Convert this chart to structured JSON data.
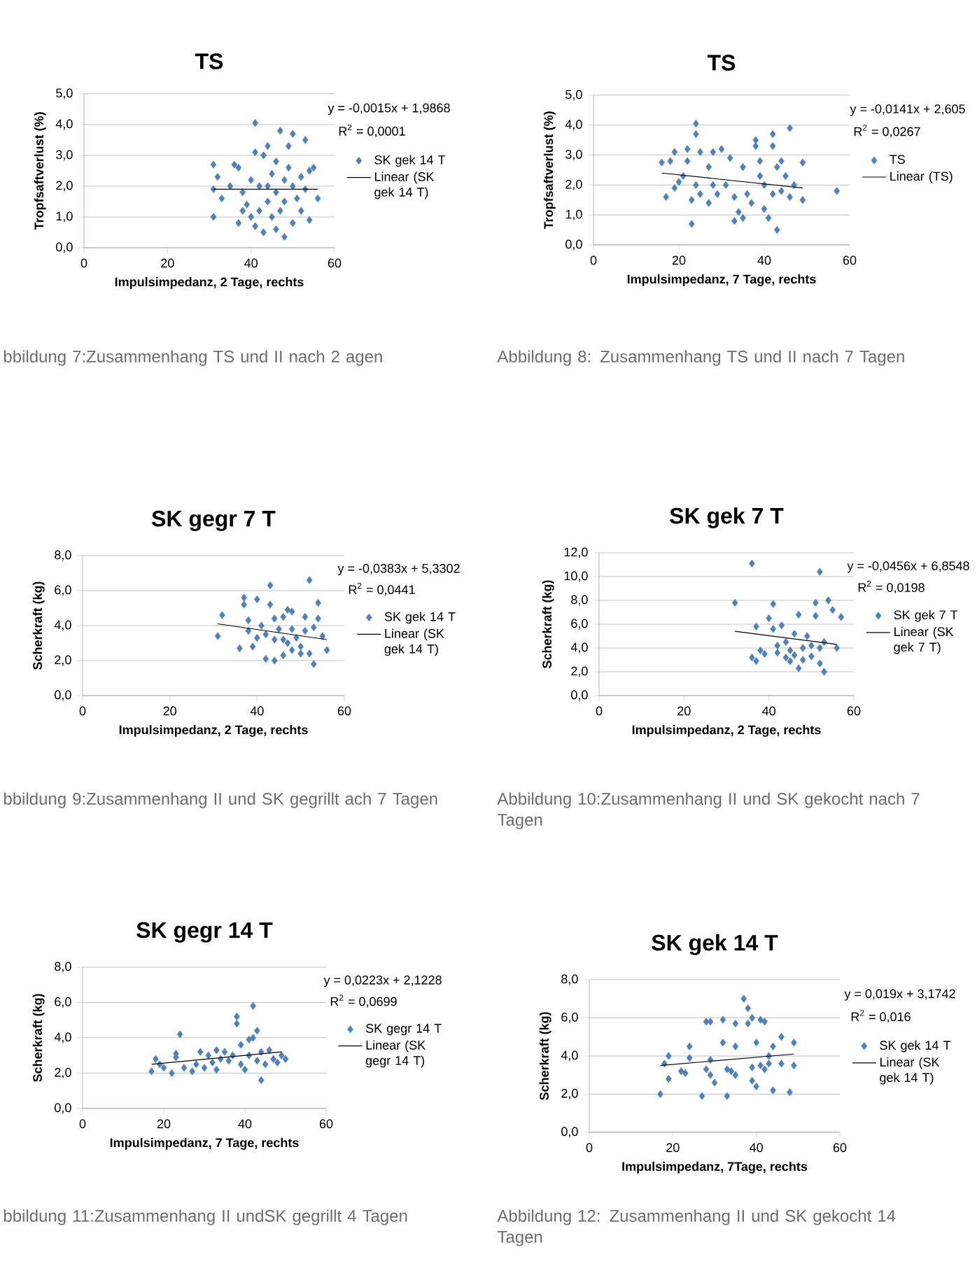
{
  "chart_data": [
    {
      "type": "scatter",
      "title": "TS",
      "xlabel": "Impulsimpedanz, 2 Tage, rechts",
      "ylabel": "Tropfsaftverlust (%)",
      "xlim": [
        0,
        60
      ],
      "xticks": [
        0,
        20,
        40,
        60
      ],
      "ylim": [
        0,
        5
      ],
      "yticks": [
        {
          "value": 0,
          "label": "0,0"
        },
        {
          "value": 1,
          "label": "1,0"
        },
        {
          "value": 2,
          "label": "2,0"
        },
        {
          "value": 3,
          "label": "3,0"
        },
        {
          "value": 4,
          "label": "4,0"
        },
        {
          "value": 5,
          "label": "5,0"
        }
      ],
      "grid": "y",
      "legend": "right",
      "marker": "diamond",
      "series": [
        {
          "name": "SK gek 14 T",
          "color": "#4f81bd",
          "x": [
            31,
            31,
            31,
            32,
            33,
            36,
            37,
            37,
            38,
            39,
            41,
            41,
            41,
            42,
            43,
            43,
            44,
            44,
            45,
            45,
            46,
            46,
            47,
            47,
            48,
            48,
            49,
            49,
            50,
            50,
            51,
            52,
            53,
            53,
            54,
            54,
            55,
            56,
            40,
            42,
            44,
            46,
            48,
            50,
            52,
            35,
            38,
            40
          ],
          "values": [
            2.7,
            1.0,
            1.9,
            2.3,
            1.6,
            2.7,
            2.6,
            0.8,
            1.8,
            1.4,
            4.05,
            3.1,
            0.7,
            2.0,
            0.5,
            3.0,
            3.3,
            1.5,
            2.4,
            1.0,
            2.8,
            1.8,
            3.8,
            1.2,
            0.35,
            2.2,
            3.3,
            2.6,
            3.7,
            0.8,
            1.6,
            2.3,
            3.5,
            1.9,
            0.9,
            2.5,
            2.6,
            1.6,
            2.2,
            1.2,
            2.0,
            0.6,
            1.5,
            2.0,
            1.2,
            2.0,
            1.2,
            1.0
          ]
        },
        {
          "name": "Linear (SK gek 14 T)",
          "type": "line",
          "color": "#000000",
          "x": [
            31,
            56
          ],
          "values": [
            1.9,
            1.9
          ],
          "marker": "none"
        }
      ],
      "annotations": [
        "y = -0,0015x + 1,9868",
        "R$^{2}$ = 0,0001",
        "bbildung 7:Zusammenhang TS und II nach 2 agen"
      ]
    },
    {
      "type": "scatter",
      "title": "TS",
      "xlabel": "Impulsimpedanz, 7 Tage, rechts",
      "ylabel": "Tropfsaftverlust (%)",
      "xlim": [
        0,
        60
      ],
      "xticks": [
        0,
        20,
        40,
        60
      ],
      "ylim": [
        0,
        5
      ],
      "yticks": [
        {
          "value": 0,
          "label": "0,0"
        },
        {
          "value": 1,
          "label": "1,0"
        },
        {
          "value": 2,
          "label": "2,0"
        },
        {
          "value": 3,
          "label": "3,0"
        },
        {
          "value": 4,
          "label": "4,0"
        },
        {
          "value": 5,
          "label": "5,0"
        }
      ],
      "grid": "y",
      "legend": "right",
      "marker": "diamond",
      "series": [
        {
          "name": "TS",
          "color": "#4f81bd",
          "x": [
            16,
            17,
            18,
            19,
            19,
            20,
            21,
            22,
            22,
            23,
            23,
            24,
            24,
            24,
            25,
            25,
            27,
            27,
            28,
            28,
            29,
            30,
            31,
            32,
            33,
            33,
            34,
            35,
            35,
            36,
            37,
            38,
            38,
            39,
            39,
            40,
            40,
            41,
            42,
            42,
            42,
            43,
            43,
            44,
            44,
            45,
            46,
            46,
            47,
            49,
            49,
            57
          ],
          "values": [
            2.75,
            1.6,
            2.8,
            3.1,
            1.9,
            2.1,
            2.3,
            3.2,
            2.8,
            1.5,
            0.7,
            4.05,
            3.7,
            2.0,
            1.7,
            3.1,
            2.6,
            1.4,
            3.1,
            2.0,
            1.7,
            3.2,
            2.0,
            2.9,
            0.8,
            1.6,
            1.1,
            2.6,
            0.9,
            1.7,
            1.4,
            3.5,
            3.3,
            2.3,
            2.8,
            1.2,
            2.0,
            0.9,
            3.7,
            3.3,
            1.7,
            0.5,
            2.6,
            2.8,
            1.8,
            2.3,
            3.9,
            1.6,
            2.0,
            2.75,
            1.5,
            1.8
          ]
        },
        {
          "name": "Linear (TS)",
          "type": "line",
          "color": "#000000",
          "x": [
            16,
            49
          ],
          "values": [
            2.4,
            1.9
          ],
          "marker": "none"
        }
      ],
      "annotations": [
        "y = -0,0141x + 2,605",
        "R$^{2}$ = 0,0267",
        "Abbildung 8: Zusammenhang TS und II nach 7 Tagen"
      ]
    },
    {
      "type": "scatter",
      "title": "SK gegr 7 T",
      "xlabel": "Impulsimpedanz, 2 Tage, rechts",
      "ylabel": "Scherkraft (kg)",
      "xlim": [
        0,
        60
      ],
      "xticks": [
        0,
        20,
        40,
        60
      ],
      "ylim": [
        0,
        8
      ],
      "yticks": [
        {
          "value": 0,
          "label": "0,0"
        },
        {
          "value": 2,
          "label": "2,0"
        },
        {
          "value": 4,
          "label": "4,0"
        },
        {
          "value": 6,
          "label": "6,0"
        },
        {
          "value": 8,
          "label": "8,0"
        }
      ],
      "grid": "y",
      "legend": "right",
      "marker": "diamond",
      "series": [
        {
          "name": "SK gek 14 T",
          "color": "#4f81bd",
          "x": [
            31,
            32,
            36,
            37,
            37,
            38,
            38,
            39,
            40,
            41,
            42,
            43,
            43,
            44,
            44,
            45,
            46,
            46,
            47,
            47,
            48,
            48,
            49,
            50,
            51,
            51,
            52,
            52,
            53,
            53,
            54,
            54,
            55,
            56,
            42,
            44,
            46,
            50,
            48,
            40
          ],
          "values": [
            3.4,
            4.6,
            2.7,
            5.6,
            5.2,
            4.3,
            3.7,
            2.8,
            5.5,
            4.0,
            2.1,
            6.3,
            5.2,
            3.2,
            2.0,
            3.8,
            2.3,
            4.5,
            4.9,
            3.0,
            4.8,
            2.6,
            3.3,
            2.8,
            4.5,
            3.7,
            6.6,
            2.4,
            1.8,
            3.9,
            5.3,
            4.4,
            3.4,
            2.6,
            3.5,
            4.4,
            3.2,
            2.4,
            3.8,
            3.3
          ]
        },
        {
          "name": "Linear (SK gek 14 T)",
          "type": "line",
          "color": "#000000",
          "x": [
            31,
            56
          ],
          "values": [
            4.1,
            3.2
          ],
          "marker": "none"
        }
      ],
      "annotations": [
        "y = -0,0383x + 5,3302",
        "R$^{2}$ = 0,0441",
        "bbildung 9:Zusammenhang II und SK gegrillt ach 7 Tagen"
      ]
    },
    {
      "type": "scatter",
      "title": "SK gek 7 T",
      "xlabel": "Impulsimpedanz, 2 Tage, rechts",
      "ylabel": "Scherkraft (kg)",
      "xlim": [
        0,
        60
      ],
      "xticks": [
        0,
        20,
        40,
        60
      ],
      "ylim": [
        0,
        12
      ],
      "yticks": [
        {
          "value": 0,
          "label": "0,0"
        },
        {
          "value": 2,
          "label": "2,0"
        },
        {
          "value": 4,
          "label": "4,0"
        },
        {
          "value": 6,
          "label": "6,0"
        },
        {
          "value": 8,
          "label": "8,0"
        },
        {
          "value": 10,
          "label": "10,0"
        },
        {
          "value": 12,
          "label": "12,0"
        }
      ],
      "grid": "y",
      "legend": "right",
      "marker": "diamond",
      "series": [
        {
          "name": "SK gek 7 T",
          "color": "#4f81bd",
          "x": [
            32,
            36,
            36,
            37,
            37,
            38,
            39,
            40,
            41,
            41,
            42,
            42,
            43,
            44,
            44,
            45,
            45,
            46,
            47,
            47,
            48,
            48,
            49,
            50,
            51,
            51,
            52,
            52,
            52,
            53,
            53,
            54,
            55,
            56,
            57,
            46,
            50
          ],
          "values": [
            7.8,
            11.1,
            3.2,
            5.8,
            2.9,
            3.8,
            3.5,
            6.5,
            7.7,
            5.6,
            4.2,
            3.6,
            5.9,
            4.5,
            3.2,
            3.8,
            2.9,
            5.2,
            6.8,
            2.3,
            4.0,
            3.0,
            5.0,
            3.3,
            7.8,
            6.7,
            10.4,
            4.0,
            2.7,
            2.0,
            4.5,
            8.0,
            7.2,
            4.0,
            6.6,
            3.4,
            4.2
          ]
        },
        {
          "name": "Linear (SK gek 7 T)",
          "type": "line",
          "color": "#000000",
          "x": [
            32,
            56
          ],
          "values": [
            5.4,
            4.3
          ],
          "marker": "none"
        }
      ],
      "annotations": [
        "y = -0,0456x + 6,8548",
        "R$^{2}$ = 0,0198",
        "Abbildung 10:Zusammenhang II und SK gekocht nach 7 Tagen"
      ]
    },
    {
      "type": "scatter",
      "title": "SK gegr 14 T",
      "xlabel": "Impulsimpedanz, 7 Tage, rechts",
      "ylabel": "Scherkraft (kg)",
      "xlim": [
        0,
        60
      ],
      "xticks": [
        0,
        20,
        40,
        60
      ],
      "ylim": [
        0,
        8
      ],
      "yticks": [
        {
          "value": 0,
          "label": "0,0"
        },
        {
          "value": 2,
          "label": "2,0"
        },
        {
          "value": 4,
          "label": "4,0"
        },
        {
          "value": 6,
          "label": "6,0"
        },
        {
          "value": 8,
          "label": "8,0"
        }
      ],
      "grid": "y",
      "legend": "right",
      "marker": "diamond",
      "series": [
        {
          "name": "SK gegr 14 T",
          "color": "#4f81bd",
          "x": [
            17,
            18,
            19,
            20,
            22,
            23,
            23,
            24,
            25,
            27,
            28,
            29,
            30,
            31,
            32,
            33,
            33,
            34,
            35,
            36,
            37,
            38,
            38,
            39,
            39,
            40,
            41,
            41,
            42,
            42,
            43,
            43,
            44,
            44,
            45,
            46,
            47,
            48,
            49,
            50
          ],
          "values": [
            2.1,
            2.8,
            2.5,
            2.3,
            2.0,
            2.9,
            3.1,
            4.2,
            2.3,
            2.1,
            2.5,
            3.2,
            2.3,
            3.0,
            2.6,
            3.3,
            2.2,
            2.8,
            3.2,
            2.7,
            3.0,
            5.2,
            4.8,
            3.6,
            2.5,
            2.2,
            3.9,
            3.0,
            5.8,
            4.0,
            4.4,
            2.7,
            1.6,
            3.2,
            2.5,
            3.3,
            2.8,
            2.6,
            3.0,
            2.8
          ]
        },
        {
          "name": "Linear (SK gegr 14 T)",
          "type": "line",
          "color": "#000000",
          "x": [
            17,
            49
          ],
          "values": [
            2.5,
            3.2
          ],
          "marker": "none"
        }
      ],
      "annotations": [
        "y = 0,0223x + 2,1228",
        "R$^{2}$ = 0,0699",
        "bbildung 11:Zusammenhang II undSK gegrillt 4 Tagen"
      ]
    },
    {
      "type": "scatter",
      "title": "SK gek 14 T",
      "xlabel": "Impulsimpedanz, 7Tage, rechts",
      "ylabel": "Scherkraft (kg)",
      "xlim": [
        0,
        60
      ],
      "xticks": [
        0,
        20,
        40,
        60
      ],
      "ylim": [
        0,
        8
      ],
      "yticks": [
        {
          "value": 0,
          "label": "0,0"
        },
        {
          "value": 2,
          "label": "2,0"
        },
        {
          "value": 4,
          "label": "4,0"
        },
        {
          "value": 6,
          "label": "6,0"
        },
        {
          "value": 8,
          "label": "8,0"
        }
      ],
      "grid": "y",
      "legend": "right",
      "marker": "diamond",
      "series": [
        {
          "name": "SK gek 14 T",
          "color": "#4f81bd",
          "x": [
            17,
            18,
            19,
            19,
            22,
            23,
            24,
            24,
            27,
            28,
            28,
            29,
            29,
            29,
            30,
            32,
            32,
            33,
            33,
            34,
            35,
            35,
            35,
            37,
            38,
            38,
            39,
            39,
            39,
            40,
            40,
            41,
            41,
            42,
            42,
            43,
            43,
            44,
            44,
            46,
            46,
            48,
            49,
            49
          ],
          "values": [
            2.0,
            3.6,
            4.0,
            2.8,
            3.2,
            3.1,
            4.5,
            3.9,
            1.9,
            5.8,
            3.3,
            5.8,
            3.8,
            3.0,
            2.6,
            5.9,
            4.7,
            1.9,
            3.3,
            3.2,
            5.7,
            4.5,
            3.0,
            7.0,
            6.5,
            5.7,
            6.0,
            3.4,
            2.7,
            4.7,
            2.4,
            5.9,
            3.5,
            5.8,
            3.3,
            4.0,
            3.6,
            4.5,
            2.2,
            5.0,
            3.6,
            2.1,
            4.7,
            3.5
          ]
        },
        {
          "name": "Linear (SK gek 14 T)",
          "type": "line",
          "color": "#000000",
          "x": [
            17,
            49
          ],
          "values": [
            3.5,
            4.1
          ],
          "marker": "none"
        }
      ],
      "annotations": [
        "y = 0,019x + 3,1742",
        "R$^{2}$ = 0,016",
        "Abbildung 12: Zusammenhang II und SK gekocht 14 Tagen"
      ]
    }
  ]
}
